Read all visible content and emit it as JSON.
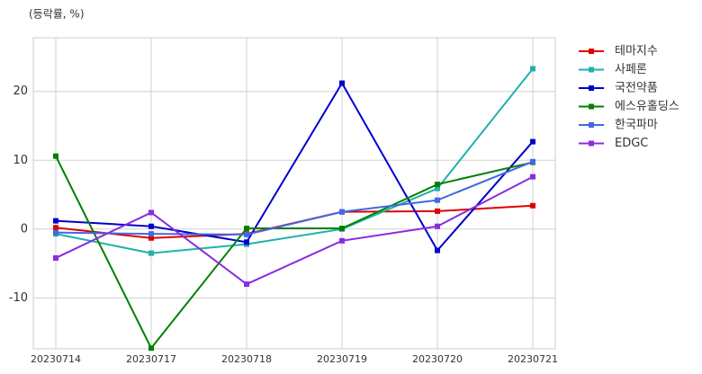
{
  "chart_data": {
    "type": "line",
    "y_label": "(등락률, %)",
    "categories": [
      "20230714",
      "20230717",
      "20230718",
      "20230719",
      "20230720",
      "20230721"
    ],
    "series": [
      {
        "name": "테마지수",
        "color": "#e00000",
        "values": [
          0.2,
          -1.3,
          -0.7,
          2.5,
          2.6,
          3.4
        ]
      },
      {
        "name": "사페론",
        "color": "#20b2aa",
        "values": [
          -0.7,
          -3.5,
          -2.2,
          0.0,
          5.9,
          23.3
        ]
      },
      {
        "name": "국전약품",
        "color": "#0000cd",
        "values": [
          1.2,
          0.4,
          -1.9,
          21.2,
          -3.1,
          12.7
        ]
      },
      {
        "name": "에스유홀딩스",
        "color": "#008000",
        "values": [
          10.6,
          -17.3,
          0.1,
          0.1,
          6.5,
          9.7
        ]
      },
      {
        "name": "한국파마",
        "color": "#4169e1",
        "values": [
          -0.5,
          -0.7,
          -0.8,
          2.5,
          4.2,
          9.8
        ]
      },
      {
        "name": "EDGC",
        "color": "#8a2be2",
        "values": [
          -4.2,
          2.4,
          -8.0,
          -1.7,
          0.4,
          7.6
        ]
      }
    ],
    "ylim": [
      -17.4,
      27.8
    ],
    "yticks": [
      -10,
      0,
      10,
      20
    ],
    "grid": true,
    "legend": "outside-right"
  }
}
